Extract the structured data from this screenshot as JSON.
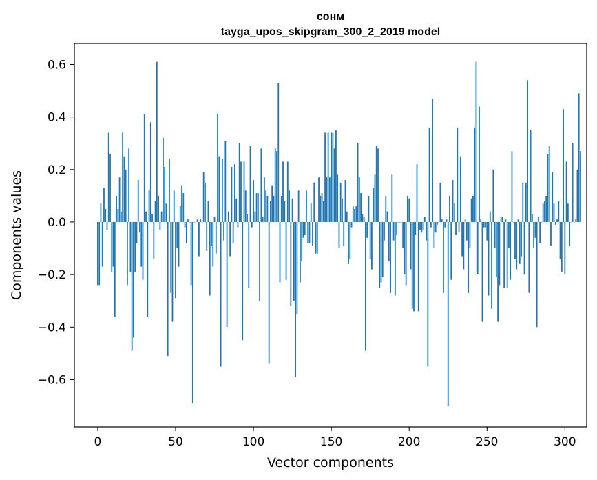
{
  "chart_data": {
    "type": "bar",
    "title": "сонм",
    "subtitle": "tayga_upos_skipgram_300_2_2019 model",
    "xlabel": "Vector components",
    "ylabel": "Components values",
    "xlim": [
      -15,
      314
    ],
    "ylim": [
      -0.78,
      0.68
    ],
    "xticks": [
      0,
      50,
      100,
      150,
      200,
      250,
      300
    ],
    "xtick_labels": [
      "0",
      "50",
      "100",
      "150",
      "200",
      "250",
      "300"
    ],
    "yticks": [
      -0.6,
      -0.4,
      -0.2,
      0.0,
      0.2,
      0.4,
      0.6
    ],
    "ytick_labels": [
      "−0.6",
      "−0.4",
      "−0.2",
      "0.0",
      "0.2",
      "0.4",
      "0.6"
    ],
    "bar_color": "#1f77b4",
    "series": [
      {
        "name": "сонм",
        "values": [
          -0.24,
          -0.24,
          0.07,
          -0.17,
          0.13,
          0.05,
          -0.03,
          0.34,
          0.26,
          -0.19,
          -0.17,
          -0.36,
          0.1,
          0.05,
          0.17,
          0.04,
          0.34,
          0.25,
          0.2,
          -0.24,
          0.28,
          -0.19,
          -0.49,
          -0.44,
          -0.19,
          -0.08,
          0.16,
          -0.04,
          -0.17,
          -0.22,
          0.41,
          0.04,
          -0.36,
          0.12,
          0.38,
          0.03,
          -0.14,
          0.08,
          0.61,
          0.1,
          -0.03,
          0.04,
          0.32,
          0.21,
          0.07,
          -0.51,
          0.24,
          -0.27,
          -0.38,
          0.12,
          -0.29,
          -0.1,
          -0.17,
          0.06,
          0.14,
          0.11,
          -0.02,
          -0.08,
          0.01,
          0.0,
          -0.24,
          -0.69,
          0.0,
          0.0,
          0.01,
          -0.13,
          0.01,
          0.0,
          0.19,
          0.15,
          -0.11,
          0.08,
          -0.28,
          -0.09,
          -0.17,
          0.02,
          -0.12,
          0.41,
          0.25,
          -0.55,
          0.24,
          -0.07,
          0.31,
          -0.4,
          0.04,
          -0.13,
          0.21,
          -0.08,
          0.22,
          0.09,
          -0.02,
          0.3,
          0.23,
          -0.45,
          0.23,
          0.12,
          0.03,
          -0.25,
          0.29,
          -0.02,
          0.16,
          0.04,
          0.11,
          0.11,
          -0.3,
          0.28,
          0.02,
          0.17,
          0.12,
          0.1,
          -0.54,
          0.08,
          0.14,
          0.1,
          0.28,
          0.27,
          0.53,
          -0.23,
          0.1,
          0.23,
          0.08,
          -0.22,
          0.23,
          0.12,
          -0.32,
          0.09,
          -0.3,
          -0.59,
          -0.35,
          0.12,
          -0.23,
          -0.15,
          -0.06,
          -0.05,
          0.12,
          -0.08,
          -0.08,
          0.07,
          -0.09,
          0.15,
          -0.12,
          -0.12,
          0.17,
          0.1,
          0.11,
          0.08,
          0.34,
          0.17,
          0.34,
          0.17,
          0.34,
          0.34,
          0.28,
          0.35,
          0.18,
          -0.1,
          0.15,
          0.09,
          -0.09,
          0.16,
          0.04,
          -0.16,
          -0.14,
          -0.02,
          0.06,
          0.05,
          0.06,
          0.3,
          0.17,
          0.11,
          0.03,
          0.02,
          -0.49,
          -0.06,
          0.1,
          -0.14,
          -0.18,
          0.13,
          0.18,
          0.29,
          0.28,
          -0.25,
          -0.23,
          -0.21,
          -0.07,
          0.1,
          0.04,
          -0.15,
          -0.27,
          0.18,
          -0.07,
          -0.28,
          -0.05,
          0.0,
          0.0,
          0.0,
          -0.1,
          -0.2,
          -0.24,
          0.1,
          0.09,
          -0.18,
          -0.33,
          -0.34,
          -0.05,
          0.22,
          -0.34,
          -0.03,
          -0.04,
          -0.03,
          0.02,
          -0.07,
          -0.55,
          0.36,
          -0.02,
          0.47,
          -0.1,
          -0.04,
          -0.01,
          0.0,
          0.15,
          0.01,
          -0.27,
          -0.02,
          0.01,
          -0.7,
          0.1,
          -0.22,
          0.16,
          0.07,
          -0.05,
          0.36,
          -0.04,
          0.25,
          -0.13,
          -0.18,
          0.01,
          -0.07,
          -0.27,
          -0.1,
          0.09,
          0.1,
          0.36,
          0.61,
          -0.2,
          0.44,
          0.01,
          -0.38,
          -0.02,
          -0.02,
          -0.07,
          -0.28,
          0.04,
          -0.33,
          0.2,
          -0.1,
          -0.21,
          -0.38,
          -0.24,
          0.02,
          0.02,
          -0.25,
          0.01,
          -0.25,
          -0.1,
          -0.22,
          0.27,
          0.0,
          -0.14,
          -0.18,
          0.01,
          -0.16,
          -0.13,
          0.15,
          -0.2,
          0.15,
          0.54,
          -0.27,
          0.35,
          0.03,
          -0.1,
          -0.06,
          -0.4,
          0.02,
          -0.08,
          0.0,
          0.07,
          0.08,
          0.1,
          0.26,
          0.29,
          -0.09,
          0.19,
          0.07,
          -0.01,
          0.01,
          0.08,
          -0.14,
          -0.19,
          0.43,
          -0.2,
          0.23,
          0.07,
          -0.09,
          0.0,
          0.3,
          0.0,
          0.01,
          0.2,
          0.49,
          0.27
        ]
      }
    ]
  }
}
